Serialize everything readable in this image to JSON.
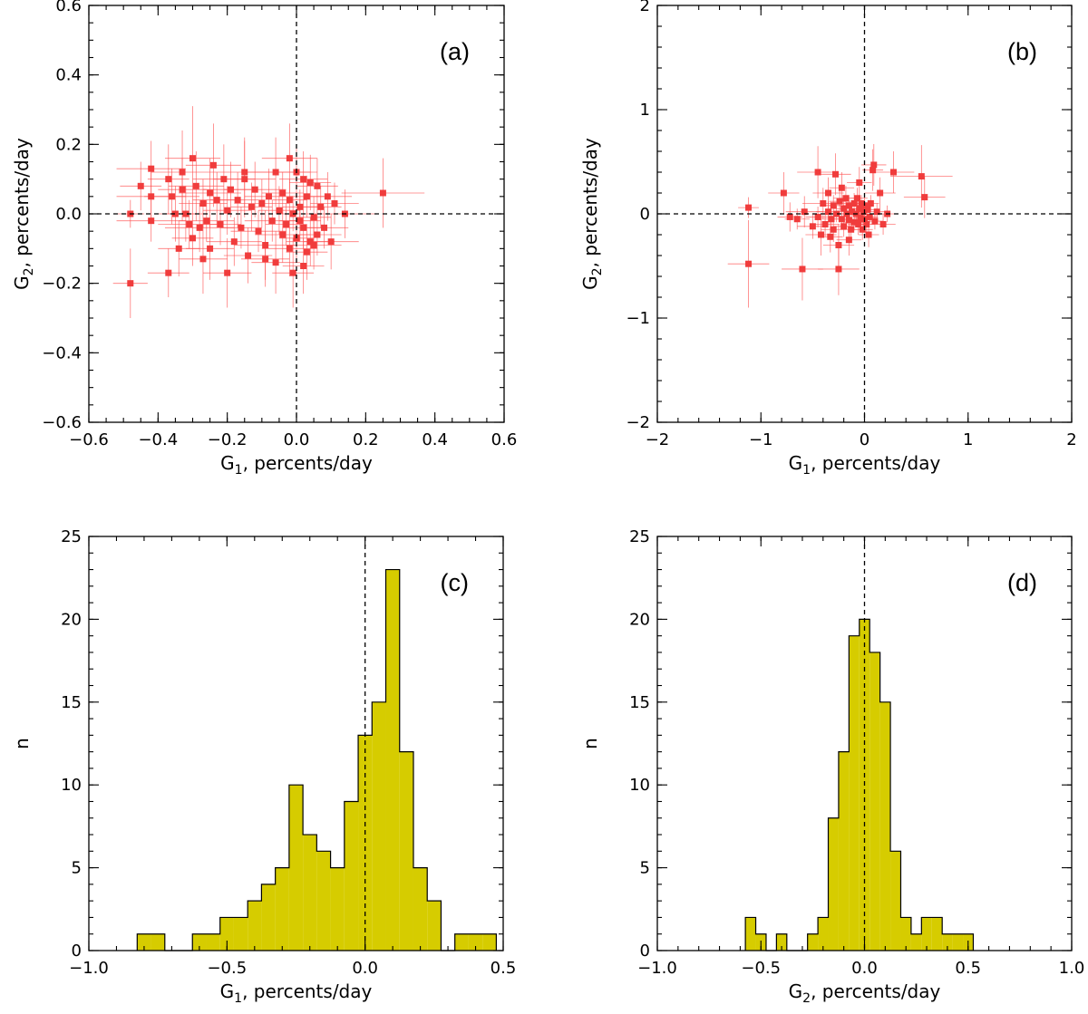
{
  "figure": {
    "colors": {
      "point": "#f03c3c",
      "errorbar": "#ff4d4d",
      "histogram_fill": "#d6cc00",
      "line": "#000000"
    }
  },
  "chart_data": [
    {
      "id": "a",
      "type": "scatter",
      "panel_label": "(a)",
      "xlabel": {
        "base": "G",
        "sub": "1",
        "rest": ", percents/day"
      },
      "ylabel": {
        "base": "G",
        "sub": "2",
        "rest": ", percents/day"
      },
      "xlim": [
        -0.6,
        0.6
      ],
      "ylim": [
        -0.6,
        0.6
      ],
      "xticks": [
        -0.6,
        -0.4,
        -0.2,
        0.0,
        0.2,
        0.4,
        0.6
      ],
      "xtick_labels": [
        "−0.6",
        "−0.4",
        "−0.2",
        "0.0",
        "0.2",
        "0.4",
        "0.6"
      ],
      "yticks": [
        -0.6,
        -0.4,
        -0.2,
        0.0,
        0.2,
        0.4,
        0.6
      ],
      "ytick_labels": [
        "−0.6",
        "−0.4",
        "−0.2",
        "0.0",
        "0.2",
        "0.4",
        "0.6"
      ],
      "xminor": 0.05,
      "yminor": 0.05,
      "reference_lines": {
        "x": 0.0,
        "y": 0.0
      },
      "points": [
        [
          -0.48,
          -0.2,
          0.05,
          0.1
        ],
        [
          -0.48,
          0.0,
          0.04,
          0.04
        ],
        [
          -0.42,
          0.13,
          0.1,
          0.08
        ],
        [
          -0.42,
          0.05,
          0.1,
          0.07
        ],
        [
          -0.42,
          -0.02,
          0.1,
          0.06
        ],
        [
          -0.37,
          0.1,
          0.06,
          0.1
        ],
        [
          -0.37,
          -0.17,
          0.06,
          0.07
        ],
        [
          -0.36,
          0.05,
          0.08,
          0.08
        ],
        [
          -0.35,
          0.0,
          0.06,
          0.08
        ],
        [
          -0.34,
          -0.1,
          0.06,
          0.08
        ],
        [
          -0.33,
          0.12,
          0.09,
          0.12
        ],
        [
          -0.32,
          0.0,
          0.06,
          0.08
        ],
        [
          -0.31,
          -0.03,
          0.09,
          0.07
        ],
        [
          -0.3,
          0.16,
          0.08,
          0.15
        ],
        [
          -0.3,
          -0.07,
          0.06,
          0.08
        ],
        [
          -0.29,
          0.08,
          0.08,
          0.1
        ],
        [
          -0.28,
          -0.04,
          0.1,
          0.07
        ],
        [
          -0.27,
          0.03,
          0.07,
          0.07
        ],
        [
          -0.26,
          -0.02,
          0.08,
          0.06
        ],
        [
          -0.25,
          0.06,
          0.09,
          0.1
        ],
        [
          -0.25,
          -0.1,
          0.07,
          0.09
        ],
        [
          -0.24,
          0.14,
          0.08,
          0.12
        ],
        [
          -0.23,
          0.04,
          0.07,
          0.08
        ],
        [
          -0.22,
          -0.03,
          0.06,
          0.06
        ],
        [
          -0.21,
          0.1,
          0.09,
          0.1
        ],
        [
          -0.2,
          -0.17,
          0.07,
          0.1
        ],
        [
          -0.2,
          0.01,
          0.07,
          0.07
        ],
        [
          -0.19,
          0.07,
          0.08,
          0.08
        ],
        [
          -0.18,
          -0.08,
          0.08,
          0.07
        ],
        [
          -0.17,
          0.04,
          0.08,
          0.08
        ],
        [
          -0.16,
          -0.04,
          0.06,
          0.06
        ],
        [
          -0.15,
          0.1,
          0.09,
          0.11
        ],
        [
          -0.14,
          -0.12,
          0.07,
          0.08
        ],
        [
          -0.13,
          0.02,
          0.06,
          0.07
        ],
        [
          -0.12,
          0.07,
          0.09,
          0.08
        ],
        [
          -0.11,
          -0.05,
          0.08,
          0.06
        ],
        [
          -0.1,
          0.03,
          0.08,
          0.07
        ],
        [
          -0.09,
          -0.09,
          0.09,
          0.1
        ],
        [
          -0.08,
          0.05,
          0.07,
          0.08
        ],
        [
          -0.07,
          -0.02,
          0.08,
          0.06
        ],
        [
          -0.06,
          0.12,
          0.1,
          0.1
        ],
        [
          -0.06,
          -0.14,
          0.07,
          0.09
        ],
        [
          -0.05,
          0.01,
          0.06,
          0.07
        ],
        [
          -0.04,
          -0.06,
          0.08,
          0.08
        ],
        [
          -0.04,
          0.06,
          0.06,
          0.06
        ],
        [
          -0.03,
          -0.03,
          0.06,
          0.06
        ],
        [
          -0.02,
          0.04,
          0.05,
          0.06
        ],
        [
          -0.02,
          -0.1,
          0.08,
          0.08
        ],
        [
          -0.02,
          0.16,
          0.08,
          0.1
        ],
        [
          -0.01,
          -0.17,
          0.06,
          0.1
        ],
        [
          -0.01,
          0.0,
          0.05,
          0.05
        ],
        [
          0.0,
          0.12,
          0.06,
          0.08
        ],
        [
          0.0,
          -0.07,
          0.05,
          0.06
        ],
        [
          0.01,
          0.02,
          0.05,
          0.05
        ],
        [
          0.01,
          -0.02,
          0.06,
          0.06
        ],
        [
          0.02,
          0.1,
          0.07,
          0.08
        ],
        [
          0.02,
          -0.04,
          0.06,
          0.06
        ],
        [
          0.03,
          -0.11,
          0.06,
          0.08
        ],
        [
          0.03,
          0.05,
          0.05,
          0.06
        ],
        [
          0.04,
          -0.08,
          0.07,
          0.07
        ],
        [
          0.04,
          0.09,
          0.06,
          0.08
        ],
        [
          0.05,
          -0.01,
          0.05,
          0.06
        ],
        [
          0.05,
          -0.09,
          0.08,
          0.07
        ],
        [
          0.06,
          0.08,
          0.06,
          0.08
        ],
        [
          0.06,
          -0.06,
          0.07,
          0.06
        ],
        [
          0.07,
          0.02,
          0.06,
          0.06
        ],
        [
          0.08,
          -0.04,
          0.07,
          0.06
        ],
        [
          0.09,
          0.05,
          0.07,
          0.07
        ],
        [
          0.1,
          -0.08,
          0.08,
          0.08
        ],
        [
          0.11,
          0.03,
          0.07,
          0.06
        ],
        [
          0.14,
          0.0,
          0.09,
          0.07
        ],
        [
          0.25,
          0.06,
          0.12,
          0.1
        ],
        [
          -0.33,
          0.07,
          0.07,
          0.09
        ],
        [
          -0.27,
          -0.13,
          0.07,
          0.1
        ],
        [
          -0.15,
          0.12,
          0.09,
          0.1
        ],
        [
          -0.09,
          -0.13,
          0.07,
          0.08
        ],
        [
          -0.45,
          0.08,
          0.06,
          0.07
        ],
        [
          0.02,
          -0.15,
          0.06,
          0.08
        ]
      ]
    },
    {
      "id": "b",
      "type": "scatter",
      "panel_label": "(b)",
      "xlabel": {
        "base": "G",
        "sub": "1",
        "rest": ", percents/day"
      },
      "ylabel": {
        "base": "G",
        "sub": "2",
        "rest": ", percents/day"
      },
      "xlim": [
        -2,
        2
      ],
      "ylim": [
        -2,
        2
      ],
      "xticks": [
        -2,
        -1,
        0,
        1,
        2
      ],
      "xtick_labels": [
        "−2",
        "−1",
        "0",
        "1",
        "2"
      ],
      "yticks": [
        -2,
        -1,
        0,
        1,
        2
      ],
      "ytick_labels": [
        "−2",
        "−1",
        "0",
        "1",
        "2"
      ],
      "xminor": 0.2,
      "yminor": 0.2,
      "reference_lines": {
        "x": 0.0,
        "y": 0.0
      },
      "points": [
        [
          -1.12,
          0.06,
          0.1,
          0.1
        ],
        [
          -1.12,
          -0.48,
          0.2,
          0.42
        ],
        [
          -0.78,
          0.2,
          0.15,
          0.2
        ],
        [
          -0.72,
          -0.03,
          0.12,
          0.14
        ],
        [
          -0.6,
          -0.53,
          0.2,
          0.3
        ],
        [
          -0.58,
          0.02,
          0.18,
          0.15
        ],
        [
          -0.45,
          0.4,
          0.2,
          0.25
        ],
        [
          -0.45,
          -0.03,
          0.12,
          0.1
        ],
        [
          -0.42,
          -0.2,
          0.15,
          0.2
        ],
        [
          -0.4,
          0.1,
          0.2,
          0.15
        ],
        [
          -0.38,
          -0.1,
          0.14,
          0.12
        ],
        [
          -0.35,
          0.02,
          0.12,
          0.1
        ],
        [
          -0.35,
          0.2,
          0.15,
          0.15
        ],
        [
          -0.32,
          -0.05,
          0.12,
          0.1
        ],
        [
          -0.3,
          0.08,
          0.1,
          0.1
        ],
        [
          -0.3,
          -0.15,
          0.12,
          0.12
        ],
        [
          -0.28,
          0.38,
          0.15,
          0.2
        ],
        [
          -0.27,
          0.0,
          0.1,
          0.08
        ],
        [
          -0.25,
          -0.3,
          0.15,
          0.2
        ],
        [
          -0.25,
          -0.53,
          0.2,
          0.25
        ],
        [
          -0.24,
          0.12,
          0.1,
          0.1
        ],
        [
          -0.22,
          -0.05,
          0.1,
          0.08
        ],
        [
          -0.2,
          0.05,
          0.1,
          0.08
        ],
        [
          -0.2,
          -0.12,
          0.1,
          0.1
        ],
        [
          -0.18,
          0.15,
          0.12,
          0.12
        ],
        [
          -0.17,
          0.0,
          0.08,
          0.08
        ],
        [
          -0.15,
          -0.06,
          0.1,
          0.08
        ],
        [
          -0.15,
          0.08,
          0.1,
          0.1
        ],
        [
          -0.13,
          -0.15,
          0.1,
          0.12
        ],
        [
          -0.12,
          0.02,
          0.08,
          0.08
        ],
        [
          -0.1,
          0.1,
          0.1,
          0.1
        ],
        [
          -0.1,
          -0.08,
          0.1,
          0.08
        ],
        [
          -0.08,
          0.0,
          0.08,
          0.06
        ],
        [
          -0.07,
          0.15,
          0.1,
          0.1
        ],
        [
          -0.06,
          -0.1,
          0.1,
          0.1
        ],
        [
          -0.05,
          0.05,
          0.08,
          0.08
        ],
        [
          -0.04,
          -0.04,
          0.06,
          0.06
        ],
        [
          -0.03,
          0.1,
          0.08,
          0.08
        ],
        [
          -0.02,
          -0.15,
          0.1,
          0.1
        ],
        [
          -0.01,
          0.02,
          0.06,
          0.06
        ],
        [
          0.0,
          -0.05,
          0.06,
          0.06
        ],
        [
          0.0,
          0.08,
          0.08,
          0.08
        ],
        [
          0.02,
          -0.1,
          0.08,
          0.08
        ],
        [
          0.03,
          0.04,
          0.06,
          0.06
        ],
        [
          0.05,
          -0.03,
          0.08,
          0.06
        ],
        [
          0.06,
          0.1,
          0.08,
          0.08
        ],
        [
          0.08,
          0.42,
          0.1,
          0.2
        ],
        [
          0.09,
          0.47,
          0.12,
          0.2
        ],
        [
          0.1,
          -0.07,
          0.08,
          0.08
        ],
        [
          0.12,
          0.02,
          0.1,
          0.08
        ],
        [
          0.15,
          0.2,
          0.15,
          0.15
        ],
        [
          0.18,
          -0.1,
          0.12,
          0.1
        ],
        [
          0.22,
          0.0,
          0.1,
          0.08
        ],
        [
          0.28,
          0.4,
          0.2,
          0.2
        ],
        [
          0.55,
          0.36,
          0.3,
          0.3
        ],
        [
          0.58,
          0.16,
          0.2,
          0.2
        ],
        [
          -0.65,
          -0.05,
          0.12,
          0.1
        ],
        [
          -0.5,
          -0.12,
          0.15,
          0.12
        ],
        [
          -0.33,
          -0.22,
          0.12,
          0.15
        ],
        [
          -0.15,
          -0.25,
          0.12,
          0.15
        ],
        [
          0.04,
          -0.2,
          0.1,
          0.12
        ],
        [
          -0.22,
          0.25,
          0.12,
          0.15
        ],
        [
          -0.05,
          0.3,
          0.12,
          0.15
        ]
      ]
    },
    {
      "id": "c",
      "type": "histogram",
      "panel_label": "(c)",
      "xlabel": {
        "base": "G",
        "sub": "1",
        "rest": ", percents/day"
      },
      "ylabel": {
        "base": "n",
        "sub": "",
        "rest": ""
      },
      "xlim": [
        -1.0,
        0.5
      ],
      "ylim": [
        0,
        25
      ],
      "xticks": [
        -1.0,
        -0.5,
        0.0,
        0.5
      ],
      "xtick_labels": [
        "−1.0",
        "−0.5",
        "0.0",
        "0.5"
      ],
      "yticks": [
        0,
        5,
        10,
        15,
        20,
        25
      ],
      "ytick_labels": [
        "0",
        "5",
        "10",
        "15",
        "20",
        "25"
      ],
      "xminor": 0.1,
      "yminor": 1,
      "reference_lines": {
        "x": 0.0
      },
      "bin_start": -0.825,
      "bin_width": 0.05,
      "counts": [
        1,
        1,
        0,
        0,
        1,
        1,
        2,
        2,
        3,
        4,
        5,
        10,
        7,
        6,
        5,
        9,
        13,
        15,
        23,
        12,
        5,
        3,
        0,
        1,
        1,
        1
      ]
    },
    {
      "id": "d",
      "type": "histogram",
      "panel_label": "(d)",
      "xlabel": {
        "base": "G",
        "sub": "2",
        "rest": ", percents/day"
      },
      "ylabel": {
        "base": "n",
        "sub": "",
        "rest": ""
      },
      "xlim": [
        -1.0,
        1.0
      ],
      "ylim": [
        0,
        25
      ],
      "xticks": [
        -1.0,
        -0.5,
        0.0,
        0.5,
        1.0
      ],
      "xtick_labels": [
        "−1.0",
        "−0.5",
        "0.0",
        "0.5",
        "1.0"
      ],
      "yticks": [
        0,
        5,
        10,
        15,
        20,
        25
      ],
      "ytick_labels": [
        "0",
        "5",
        "10",
        "15",
        "20",
        "25"
      ],
      "xminor": 0.1,
      "yminor": 1,
      "reference_lines": {
        "x": 0.0
      },
      "bin_start": -0.575,
      "bin_width": 0.05,
      "counts": [
        2,
        1,
        0,
        1,
        0,
        0,
        1,
        2,
        8,
        12,
        19,
        20,
        18,
        15,
        6,
        2,
        1,
        2,
        2,
        1,
        1,
        1
      ]
    }
  ]
}
